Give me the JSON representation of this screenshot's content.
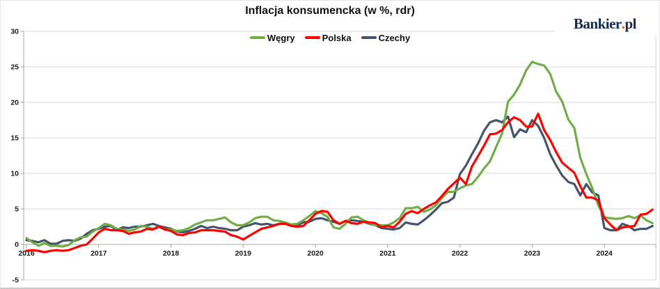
{
  "header": {
    "title": "Inflacja konsumencka (w %, rdr)"
  },
  "branding": {
    "logo_main": "Bankier",
    "logo_dot": ".",
    "logo_suffix": "pl",
    "logo_color": "#14294d",
    "logo_dot_color": "#e84e1b"
  },
  "chart_data": {
    "type": "line",
    "title": "Inflacja konsumencka (w %, rdr)",
    "x_frequency": "monthly",
    "x_start": "2016-01",
    "x_end": "2024-09",
    "x_tick_labels": [
      "2016",
      "2017",
      "2018",
      "2019",
      "2020",
      "2021",
      "2022",
      "2023",
      "2024"
    ],
    "y_ticks": [
      30,
      25,
      20,
      15,
      10,
      5,
      0,
      -5
    ],
    "ylim": [
      -5,
      30
    ],
    "grid": "horizontal-only",
    "legend_position": "top-center",
    "colors": {
      "gridline": "#d9d9d9",
      "axis": "#a6a6a6",
      "tick_label": "#1a1a1a"
    },
    "draw_order": [
      "Czechy",
      "Węgry",
      "Polska"
    ],
    "series": [
      {
        "name": "Węgry",
        "color": "#70AD47",
        "values": [
          0.9,
          0.3,
          -0.2,
          0.2,
          -0.2,
          -0.2,
          -0.3,
          -0.1,
          0.6,
          1.0,
          1.1,
          1.8,
          2.3,
          2.9,
          2.7,
          2.2,
          2.1,
          1.9,
          2.1,
          2.6,
          2.5,
          2.2,
          2.5,
          2.1,
          2.1,
          1.9,
          2.0,
          2.3,
          2.8,
          3.1,
          3.4,
          3.4,
          3.6,
          3.8,
          3.1,
          2.7,
          2.7,
          3.1,
          3.7,
          3.9,
          3.9,
          3.4,
          3.3,
          3.1,
          2.8,
          2.9,
          3.4,
          4.0,
          4.7,
          4.4,
          3.9,
          2.4,
          2.2,
          2.9,
          3.8,
          3.9,
          3.4,
          3.0,
          2.7,
          2.7,
          2.7,
          3.1,
          3.7,
          5.1,
          5.1,
          5.3,
          4.6,
          4.9,
          5.5,
          6.5,
          7.4,
          7.4,
          7.9,
          8.3,
          8.5,
          9.5,
          10.7,
          11.7,
          13.7,
          15.6,
          20.1,
          21.1,
          22.5,
          24.5,
          25.7,
          25.4,
          25.2,
          24.0,
          21.5,
          20.1,
          17.6,
          16.4,
          12.2,
          9.9,
          7.9,
          5.5,
          3.8,
          3.7,
          3.6,
          3.7,
          4.0,
          3.7,
          4.1,
          3.4,
          3.0
        ]
      },
      {
        "name": "Polska",
        "color": "#FF0000",
        "values": [
          -0.9,
          -0.8,
          -0.9,
          -1.1,
          -0.9,
          -0.8,
          -0.9,
          -0.8,
          -0.5,
          -0.2,
          0.0,
          0.8,
          1.7,
          2.2,
          2.0,
          2.0,
          1.9,
          1.5,
          1.7,
          1.8,
          2.2,
          2.1,
          2.5,
          2.1,
          1.9,
          1.4,
          1.3,
          1.6,
          1.7,
          2.0,
          2.0,
          2.0,
          1.9,
          1.8,
          1.3,
          1.1,
          0.7,
          1.2,
          1.7,
          2.2,
          2.4,
          2.6,
          2.9,
          2.9,
          2.6,
          2.5,
          2.6,
          3.4,
          4.3,
          4.7,
          4.6,
          3.4,
          2.9,
          3.3,
          3.0,
          2.9,
          3.2,
          3.1,
          3.0,
          2.4,
          2.6,
          2.4,
          3.2,
          4.3,
          4.7,
          4.4,
          5.0,
          5.5,
          5.9,
          6.8,
          7.8,
          8.6,
          9.4,
          8.5,
          11.0,
          12.4,
          13.9,
          15.5,
          15.6,
          16.1,
          17.2,
          17.9,
          17.5,
          16.6,
          16.6,
          18.4,
          16.1,
          14.7,
          13.0,
          11.5,
          10.8,
          10.1,
          8.2,
          6.6,
          6.6,
          6.2,
          3.7,
          2.8,
          2.0,
          2.4,
          2.5,
          2.6,
          4.2,
          4.3,
          4.9
        ]
      },
      {
        "name": "Czechy",
        "color": "#44546A",
        "values": [
          0.6,
          0.5,
          0.3,
          0.6,
          0.1,
          0.1,
          0.5,
          0.6,
          0.5,
          0.8,
          1.5,
          2.0,
          2.2,
          2.5,
          2.6,
          2.0,
          2.4,
          2.3,
          2.5,
          2.5,
          2.7,
          2.9,
          2.6,
          2.4,
          2.2,
          1.8,
          1.7,
          1.9,
          2.2,
          2.6,
          2.3,
          2.5,
          2.3,
          2.2,
          2.0,
          2.0,
          2.5,
          2.7,
          3.0,
          2.8,
          2.9,
          2.7,
          2.9,
          2.9,
          2.7,
          2.7,
          3.1,
          3.2,
          3.6,
          3.7,
          3.4,
          3.2,
          2.9,
          3.3,
          3.4,
          3.3,
          3.2,
          2.9,
          2.7,
          2.3,
          2.2,
          2.1,
          2.3,
          3.1,
          2.9,
          2.8,
          3.4,
          4.1,
          4.9,
          5.8,
          6.0,
          6.6,
          9.9,
          11.1,
          12.7,
          14.2,
          16.0,
          17.2,
          17.5,
          17.2,
          18.0,
          15.1,
          16.2,
          15.8,
          17.5,
          16.7,
          15.0,
          12.7,
          11.1,
          9.7,
          8.8,
          8.5,
          6.9,
          8.5,
          7.3,
          6.9,
          2.3,
          2.0,
          2.0,
          2.9,
          2.6,
          2.0,
          2.2,
          2.2,
          2.6
        ]
      }
    ]
  }
}
